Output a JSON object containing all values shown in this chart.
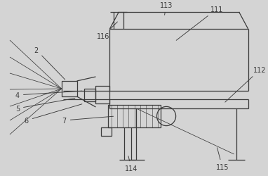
{
  "bg_color": "#d4d4d4",
  "line_color": "#3a3a3a",
  "figsize": [
    3.82,
    2.51
  ],
  "dpi": 100,
  "lw": 0.9,
  "tlw": 0.55
}
